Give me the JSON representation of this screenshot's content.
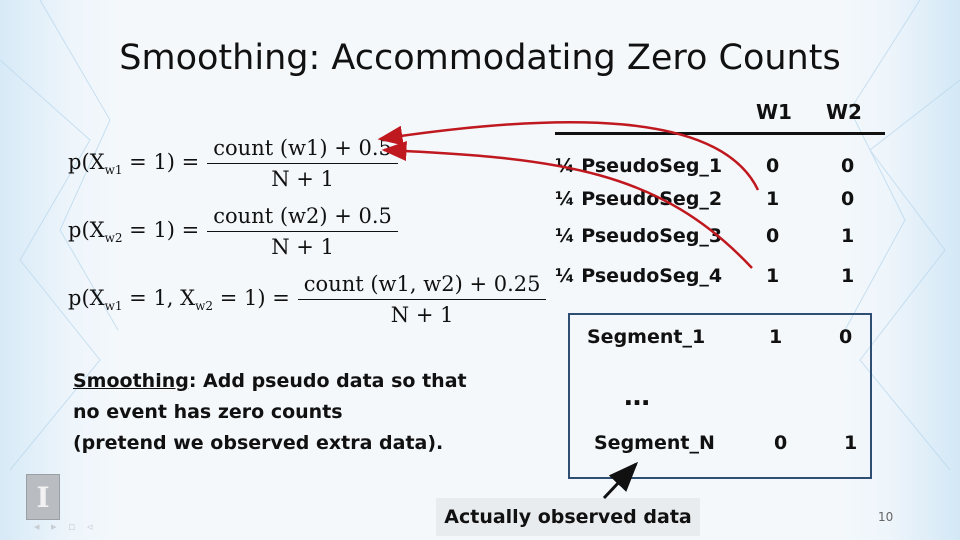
{
  "slide": {
    "title": "Smoothing: Accommodating Zero Counts",
    "page_number": "10"
  },
  "formulas": [
    {
      "lhs_prefix": "p(X",
      "lhs_sub": "w1",
      "lhs_suffix": " = 1) =",
      "numerator": "count (w1) + 0.5",
      "denominator": "N + 1"
    },
    {
      "lhs_prefix": "p(X",
      "lhs_sub": "w2",
      "lhs_suffix": " = 1) =",
      "numerator": "count (w2) + 0.5",
      "denominator": "N + 1"
    },
    {
      "lhs_prefix": "p(X",
      "lhs_sub": "w1",
      "lhs_mid": " = 1, X",
      "lhs_sub2": "w2",
      "lhs_suffix": " = 1) =",
      "numerator": "count (w1, w2) + 0.25",
      "denominator": "N + 1"
    }
  ],
  "table": {
    "columns": [
      "W1",
      "W2"
    ],
    "pseudo_rows": [
      {
        "label": "¼ PseudoSeg_1",
        "w1": "0",
        "w2": "0"
      },
      {
        "label": "¼ PseudoSeg_2",
        "w1": "1",
        "w2": "0"
      },
      {
        "label": "¼ PseudoSeg_3",
        "w1": "0",
        "w2": "1"
      },
      {
        "label": "¼ PseudoSeg_4",
        "w1": "1",
        "w2": "1"
      }
    ],
    "observed_rows": [
      {
        "label": "Segment_1",
        "w1": "1",
        "w2": "0"
      },
      {
        "label": "Segment_N",
        "w1": "0",
        "w2": "1"
      }
    ],
    "ellipsis": "…"
  },
  "smoothing_note": {
    "term": "Smoothing",
    "line1_rest": ": Add pseudo data so that",
    "line2": "no event has zero counts",
    "line3": "(pretend we observed extra data)."
  },
  "callout": "Actually observed data",
  "colors": {
    "arrow": "#c0181f",
    "box_border": "#2f4e73"
  },
  "logo_glyph": "I"
}
